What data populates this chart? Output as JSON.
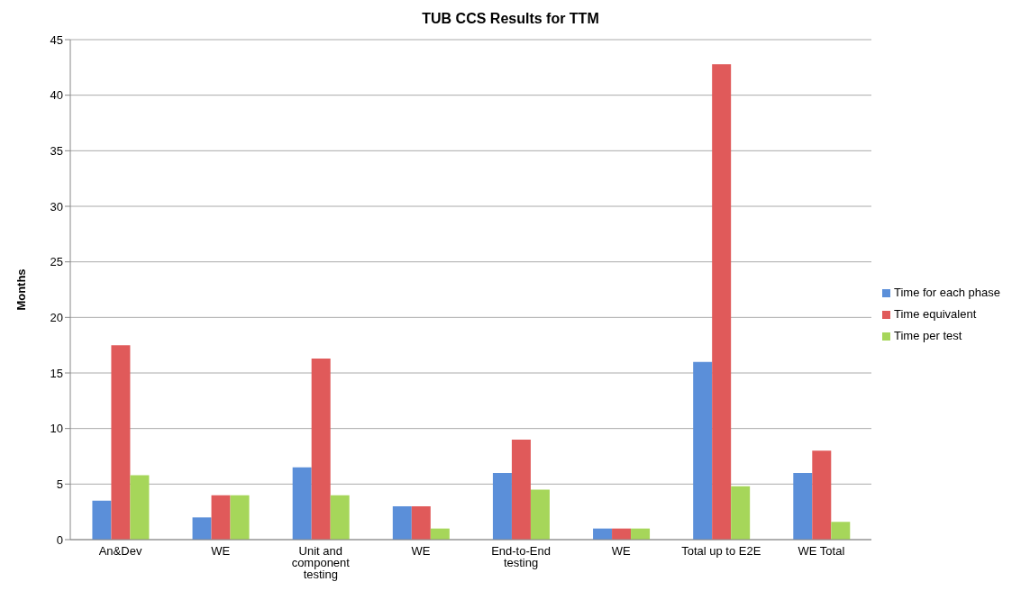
{
  "chart_data": {
    "type": "bar",
    "title": "TUB CCS Results for TTM",
    "ylabel": "Months",
    "categories": [
      "An&Dev",
      "WE",
      "Unit and component testing",
      "WE",
      "End-to-End testing",
      "WE",
      "Total up to E2E",
      "WE Total"
    ],
    "series": [
      {
        "name": "Time for each phase",
        "color": "#5b8fd9",
        "values": [
          3.5,
          2,
          6.5,
          3,
          6,
          1,
          16,
          6
        ]
      },
      {
        "name": "Time equivalent",
        "color": "#e05a5a",
        "values": [
          17.5,
          4,
          16.3,
          3,
          9,
          1,
          42.8,
          8
        ]
      },
      {
        "name": "Time per test",
        "color": "#a6d65a",
        "values": [
          5.8,
          4,
          4,
          1,
          4.5,
          1,
          4.8,
          1.6
        ]
      }
    ],
    "ylim": [
      0,
      45
    ],
    "yticks": [
      0,
      5,
      10,
      15,
      20,
      25,
      30,
      35,
      40,
      45
    ],
    "grid": "y",
    "legend": "right"
  }
}
